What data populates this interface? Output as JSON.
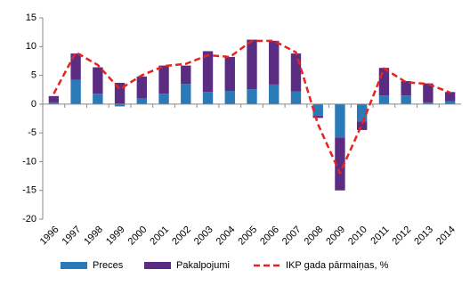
{
  "chart_data": {
    "type": "stacked-bar-line",
    "categories": [
      "1996",
      "1997",
      "1998",
      "1999",
      "2000",
      "2001",
      "2002",
      "2003",
      "2004",
      "2005",
      "2006",
      "2007",
      "2008",
      "2009",
      "2010",
      "2011",
      "2012",
      "2013",
      "2014"
    ],
    "series": [
      {
        "name": "Preces",
        "color": "#2a7ab8",
        "kind": "bar",
        "values": [
          0.3,
          4.2,
          1.8,
          -0.4,
          1.0,
          1.8,
          3.5,
          2.1,
          2.3,
          2.6,
          3.4,
          2.2,
          -2.0,
          -5.8,
          -3.0,
          1.5,
          1.5,
          0.3,
          0.5
        ]
      },
      {
        "name": "Pakalpojumi",
        "color": "#5a2d82",
        "kind": "bar",
        "values": [
          1.1,
          4.6,
          4.6,
          3.7,
          3.8,
          4.9,
          3.2,
          7.1,
          5.9,
          8.6,
          7.6,
          6.6,
          -0.4,
          -9.2,
          -1.5,
          4.8,
          2.5,
          3.3,
          1.6
        ]
      },
      {
        "name": "IKP gada pārmaiņas, %",
        "color": "#e8231e",
        "kind": "line",
        "values": [
          1.8,
          9.0,
          6.8,
          2.6,
          5.0,
          6.6,
          7.0,
          8.5,
          8.2,
          11.0,
          11.0,
          9.0,
          -3.5,
          -12.0,
          -3.5,
          6.2,
          3.8,
          3.5,
          2.0
        ]
      }
    ],
    "ylim": [
      -20,
      15
    ],
    "yticks": [
      -20,
      -15,
      -10,
      -5,
      0,
      5,
      10,
      15
    ]
  }
}
